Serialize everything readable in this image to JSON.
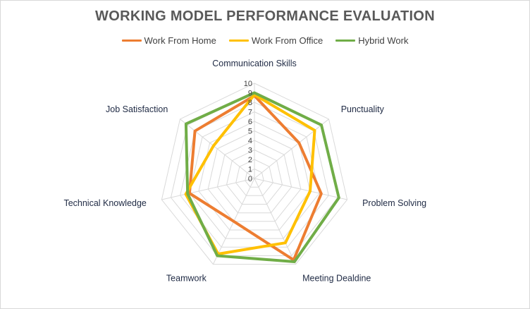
{
  "chart_data": {
    "type": "radar",
    "title": "WORKING MODEL PERFORMANCE EVALUATION",
    "categories": [
      "Communication Skills",
      "Punctuality",
      "Problem Solving",
      "Meeting Dealdine",
      "Teamwork",
      "Technical Knowledge",
      "Job Satisfaction"
    ],
    "r_ticks": [
      0,
      1,
      2,
      3,
      4,
      5,
      6,
      7,
      8,
      9,
      10
    ],
    "rlim": [
      0,
      10
    ],
    "grid": true,
    "legend": "top",
    "series": [
      {
        "name": "Work From Home",
        "color": "#ED7D31",
        "values": [
          8.7,
          6.0,
          7.2,
          9.5,
          5.0,
          7.0,
          8.0
        ]
      },
      {
        "name": "Work From Office",
        "color": "#FFC000",
        "values": [
          8.8,
          8.1,
          6.0,
          7.5,
          8.8,
          7.4,
          5.5
        ]
      },
      {
        "name": "Hybrid Work",
        "color": "#70AD47",
        "values": [
          9.0,
          9.0,
          9.1,
          9.7,
          9.0,
          7.2,
          9.2
        ]
      }
    ]
  }
}
